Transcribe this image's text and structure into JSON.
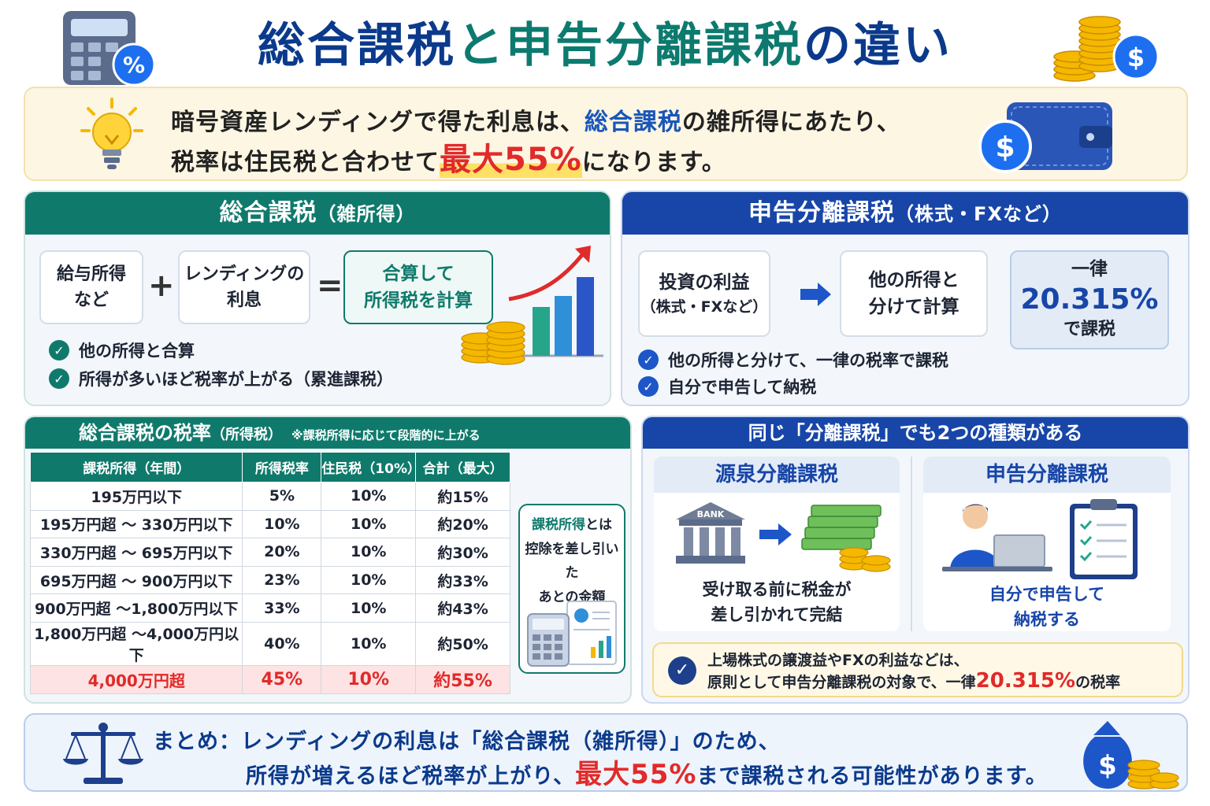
{
  "title": {
    "part1": "総合課税",
    "part2": "と",
    "part3": "申告分離課税",
    "part4": "の違い"
  },
  "intro": {
    "line1_a": "暗号資産レンディングで得た利息は、",
    "line1_b": "総合課税",
    "line1_c": "の雑所得にあたり、",
    "line2_a": "税率は住民税と合わせて",
    "line2_b": "最大55%",
    "line2_c": "になります。"
  },
  "sogo": {
    "header": "総合課税",
    "header_sub": "（雑所得）",
    "box1": "給与所得\nなど",
    "plus": "+",
    "box2": "レンディングの\n利息",
    "equals": "=",
    "box3": "合算して\n所得税を計算",
    "checks": [
      "他の所得と合算",
      "所得が多いほど税率が上がる（累進課税）"
    ]
  },
  "bunri": {
    "header": "申告分離課税",
    "header_sub": "（株式・FXなど）",
    "box1_a": "投資の利益",
    "box1_b": "（株式・FXなど）",
    "box2": "他の所得と\n分けて計算",
    "box3_a": "一律",
    "box3_b": "20.315%",
    "box3_c": "で課税",
    "checks": [
      "他の所得と分けて、一律の税率で課税",
      "自分で申告して納税"
    ]
  },
  "rates": {
    "header": "総合課税の税率",
    "header_sub": "（所得税）",
    "header_note": "※課税所得に応じて段階的に上がる",
    "columns": [
      "課税所得（年間）",
      "所得税率",
      "住民税（10%）",
      "合計（最大）"
    ],
    "rows": [
      [
        "195万円以下",
        "5%",
        "10%",
        "約15%"
      ],
      [
        "195万円超 ～ 330万円以下",
        "10%",
        "10%",
        "約20%"
      ],
      [
        "330万円超 ～ 695万円以下",
        "20%",
        "10%",
        "約30%"
      ],
      [
        "695万円超 ～ 900万円以下",
        "23%",
        "10%",
        "約33%"
      ],
      [
        "900万円超 ～1,800万円以下",
        "33%",
        "10%",
        "約43%"
      ],
      [
        "1,800万円超 ～4,000万円以下",
        "40%",
        "10%",
        "約50%"
      ],
      [
        "4,000万円超",
        "45%",
        "10%",
        "約55%"
      ]
    ],
    "note_a": "課税所得",
    "note_b": "とは",
    "note_c": "控除を差し引いた",
    "note_d": "あとの金額"
  },
  "types": {
    "header": "同じ「分離課税」でも2つの種類がある",
    "left_title": "源泉分離課税",
    "left_bank": "BANK",
    "left_text": "受け取る前に税金が\n差し引かれて完結",
    "right_title": "申告分離課税",
    "right_text": "自分で申告して\n納税する",
    "info_a": "上場株式の譲渡益やFXの利益などは、",
    "info_b": "原則として申告分離課税の対象で、一律",
    "info_c": "20.315%",
    "info_d": "の税率"
  },
  "summary": {
    "line1": "まとめ：レンディングの利息は「総合課税（雑所得）」のため、",
    "line2_a": "所得が増えるほど税率が上がり、",
    "line2_b": "最大55%",
    "line2_c": "まで課税される可能性があります。"
  },
  "icons": {
    "title_left": "calculator-percent-icon",
    "title_right": "coin-stack-dollar-icon",
    "intro_left": "lightbulb-icon",
    "intro_right": "wallet-dollar-icon",
    "sogo_chart": "growth-chart-coins-icon",
    "arrow": "arrow-right-icon",
    "note_calc": "calculator-document-icon",
    "bank": "bank-icon",
    "money": "money-stack-icon",
    "person": "person-laptop-icon",
    "checklist": "checklist-clipboard-icon",
    "summary_left": "balance-scale-icon",
    "summary_right": "money-bag-icon"
  },
  "colors": {
    "teal": "#0f7a6c",
    "navy": "#1846a8",
    "red": "#e12a2a",
    "gold": "#f5b800"
  }
}
